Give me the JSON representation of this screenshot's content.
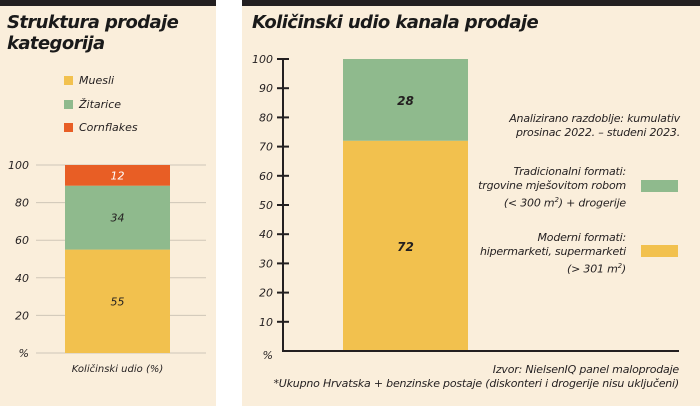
{
  "chart_data": [
    {
      "type": "bar",
      "stacked": true,
      "title": "Struktura prodaje kategorija",
      "categories": [
        "Količinski udio (%)"
      ],
      "series": [
        {
          "name": "Muesli",
          "values": [
            55
          ],
          "color": "#f2c14e"
        },
        {
          "name": "Žitarice",
          "values": [
            34
          ],
          "color": "#8fba8d"
        },
        {
          "name": "Cornflakes",
          "values": [
            12
          ],
          "color": "#e85e25"
        }
      ],
      "data_labels": [
        "55",
        "34",
        "12"
      ],
      "xlabel": "Količinski udio (%)",
      "ylabel": "%",
      "ylim": [
        0,
        100
      ],
      "y_ticks": [
        "%",
        "20",
        "40",
        "60",
        "80",
        "100"
      ],
      "grid": true,
      "legend_position": "top"
    },
    {
      "type": "bar",
      "stacked": true,
      "title": "Količinski udio kanala prodaje",
      "categories": [
        ""
      ],
      "series": [
        {
          "name": "Moderni formati: hipermarketi, supermarketi (> 301 m2)",
          "values": [
            72
          ],
          "color": "#f2c14e"
        },
        {
          "name": "Tradicionalni formati: trgovine mješovitom robom (< 300 m2) + drogerije",
          "values": [
            28
          ],
          "color": "#8fba8d"
        }
      ],
      "data_labels": [
        "72",
        "28"
      ],
      "ylabel": "%",
      "ylim": [
        0,
        100
      ],
      "y_ticks": [
        "%",
        "10",
        "20",
        "30",
        "40",
        "50",
        "60",
        "70",
        "80",
        "90",
        "100"
      ],
      "grid": false,
      "legend_position": "right"
    }
  ],
  "left": {
    "title": "Struktura prodaje kategorija",
    "legend": [
      "Muesli",
      "Žitarice",
      "Cornflakes"
    ],
    "xlabel": "Količinski udio (%)"
  },
  "right": {
    "title": "Količinski udio kanala prodaje",
    "period_line1": "Analizirano razdoblje: kumulativ",
    "period_line2": "prosinac 2022. – studeni 2023.",
    "trad_line1": "Tradicionalni formati:",
    "trad_line2": "trgovine mješovitom robom",
    "trad_line3_a": "(< 300 m",
    "trad_line3_sup": "2",
    "trad_line3_b": ") + drogerije",
    "mod_line1": "Moderni formati:",
    "mod_line2": "hipermarketi, supermarketi",
    "mod_line3_a": "(> 301 m",
    "mod_line3_sup": "2",
    "mod_line3_b": ")",
    "source": "Izvor: NielsenIQ panel maloprodaje",
    "footnote": "*Ukupno Hrvatska + benzinske postaje (diskonteri i drogerije nisu uključeni)"
  }
}
